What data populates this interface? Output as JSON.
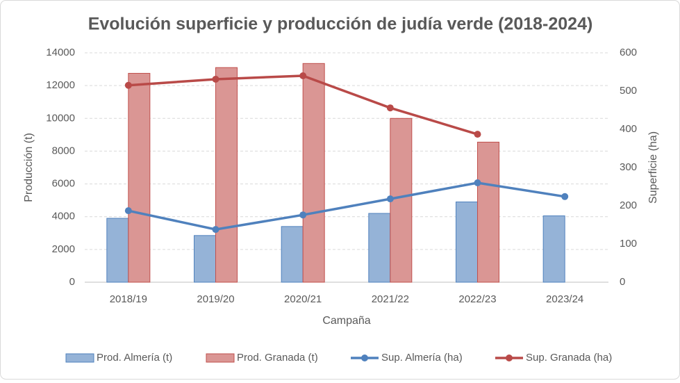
{
  "chart_data": {
    "type": "bar-line",
    "title": "Evolución superficie y producción de judía verde (2018-2024)",
    "x_label": "Campaña",
    "y_label": "Producción  (t)",
    "y2_label": "Superficie (ha)",
    "categories": [
      "2018/19",
      "2019/20",
      "2020/21",
      "2021/22",
      "2022/23",
      "2023/24"
    ],
    "series": [
      {
        "name": "Prod. Almería (t)",
        "type": "bar",
        "color": "#95b3d7",
        "stroke": "#4f81bd",
        "values": [
          3900,
          2850,
          3400,
          4200,
          4900,
          4050
        ]
      },
      {
        "name": "Prod. Granada (t)",
        "type": "bar",
        "color": "#da9694",
        "stroke": "#c0504d",
        "values": [
          12750,
          13100,
          13350,
          10000,
          8550,
          null
        ]
      },
      {
        "name": "Sup. Almería (ha)",
        "type": "line",
        "axis": "y2",
        "color": "#4f81bd",
        "values": [
          187,
          138,
          176,
          218,
          260,
          224
        ]
      },
      {
        "name": "Sup. Granada (ha)",
        "type": "line",
        "axis": "y2",
        "color": "#b94a48",
        "values": [
          515,
          531,
          540,
          456,
          387,
          null
        ]
      }
    ],
    "ylim": [
      0,
      14000
    ],
    "yticks": [
      0,
      2000,
      4000,
      6000,
      8000,
      10000,
      12000,
      14000
    ],
    "y2lim": [
      0,
      600
    ],
    "y2ticks": [
      0,
      100,
      200,
      300,
      400,
      500,
      600
    ],
    "grid": true,
    "legend": "bottom"
  }
}
